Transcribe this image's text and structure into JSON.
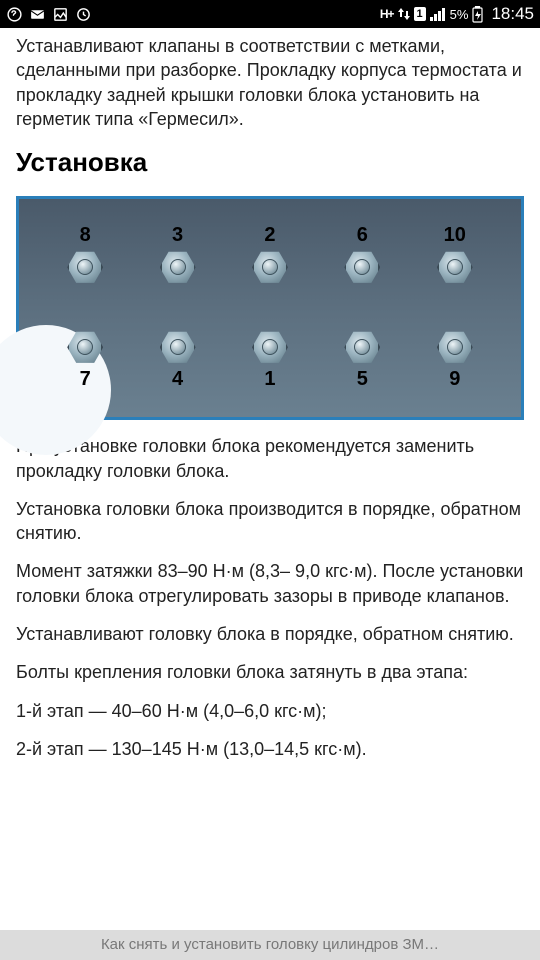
{
  "status": {
    "time": "18:45",
    "battery_pct": "5%",
    "sim_label": "1"
  },
  "article": {
    "intro": "Устанавливают клапаны в соответствии с метками, сделанными при разборке. Прокладку корпуса термостата и прокладку задней крышки головки блока установить на герметик типа «Гермесил».",
    "heading": "Установка",
    "p1": "При установке головки блока рекомендуется заменить прокладку головки блока.",
    "p2": "Установка головки блока производится в порядке, обратном снятию.",
    "p3": "Момент затяжки 83–90 Н·м (8,3– 9,0 кгс·м). После установки головки блока отрегулировать зазоры в приводе клапанов.",
    "p4": "Устанавливают головку блока в порядке, обратном снятию.",
    "p5": "Болты крепления головки блока затянуть в два этапа:",
    "p6": "1-й этап — 40–60 Н·м (4,0–6,0 кгс·м);",
    "p7": "2-й этап — 130–145 Н·м (13,0–14,5 кгс·м)."
  },
  "diagram": {
    "top_row": [
      {
        "n": "8"
      },
      {
        "n": "3"
      },
      {
        "n": "2"
      },
      {
        "n": "6"
      },
      {
        "n": "10"
      }
    ],
    "bottom_row": [
      {
        "n": "7"
      },
      {
        "n": "4"
      },
      {
        "n": "1"
      },
      {
        "n": "5"
      },
      {
        "n": "9"
      }
    ],
    "border_color": "#2a7fba",
    "bg_gradient_top": "#4a5a6a",
    "bg_gradient_bottom": "#6a8090"
  },
  "bottom_toast": "Как снять и установить головку цилиндров ЗМ…"
}
